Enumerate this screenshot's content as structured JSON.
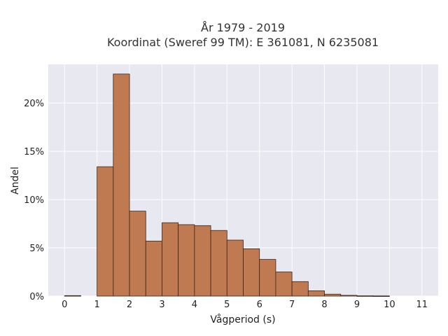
{
  "chart_data": {
    "type": "bar",
    "title": [
      "År 1979 - 2019",
      "Koordinat (Sweref 99 TM): E 361081, N 6235081"
    ],
    "xlabel": "Vågperiod (s)",
    "ylabel": "Andel",
    "bin_width": 0.5,
    "bins_start": [
      0,
      0.5,
      1,
      1.5,
      2,
      2.5,
      3,
      3.5,
      4,
      4.5,
      5,
      5.5,
      6,
      6.5,
      7,
      7.5,
      8,
      8.5,
      9,
      9.5,
      10,
      10.5
    ],
    "values": [
      0.05,
      0,
      13.4,
      23.0,
      8.8,
      5.7,
      7.6,
      7.4,
      7.3,
      6.8,
      5.8,
      4.9,
      3.8,
      2.5,
      1.5,
      0.55,
      0.2,
      0.08,
      0.03,
      0.02,
      0,
      0
    ],
    "xlim": [
      -0.5,
      11.5
    ],
    "ylim": [
      0,
      24
    ],
    "xticks": [
      0,
      1,
      2,
      3,
      4,
      5,
      6,
      7,
      8,
      9,
      10,
      11
    ],
    "yticks": [
      0,
      5,
      10,
      15,
      20
    ],
    "ytick_labels": [
      "0%",
      "5%",
      "10%",
      "15%",
      "20%"
    ],
    "grid": true,
    "colors": {
      "bar_fill": "#c07a52",
      "bar_edge": "#3a2418",
      "plot_bg": "#e8e8f0",
      "grid": "#ffffff"
    }
  }
}
